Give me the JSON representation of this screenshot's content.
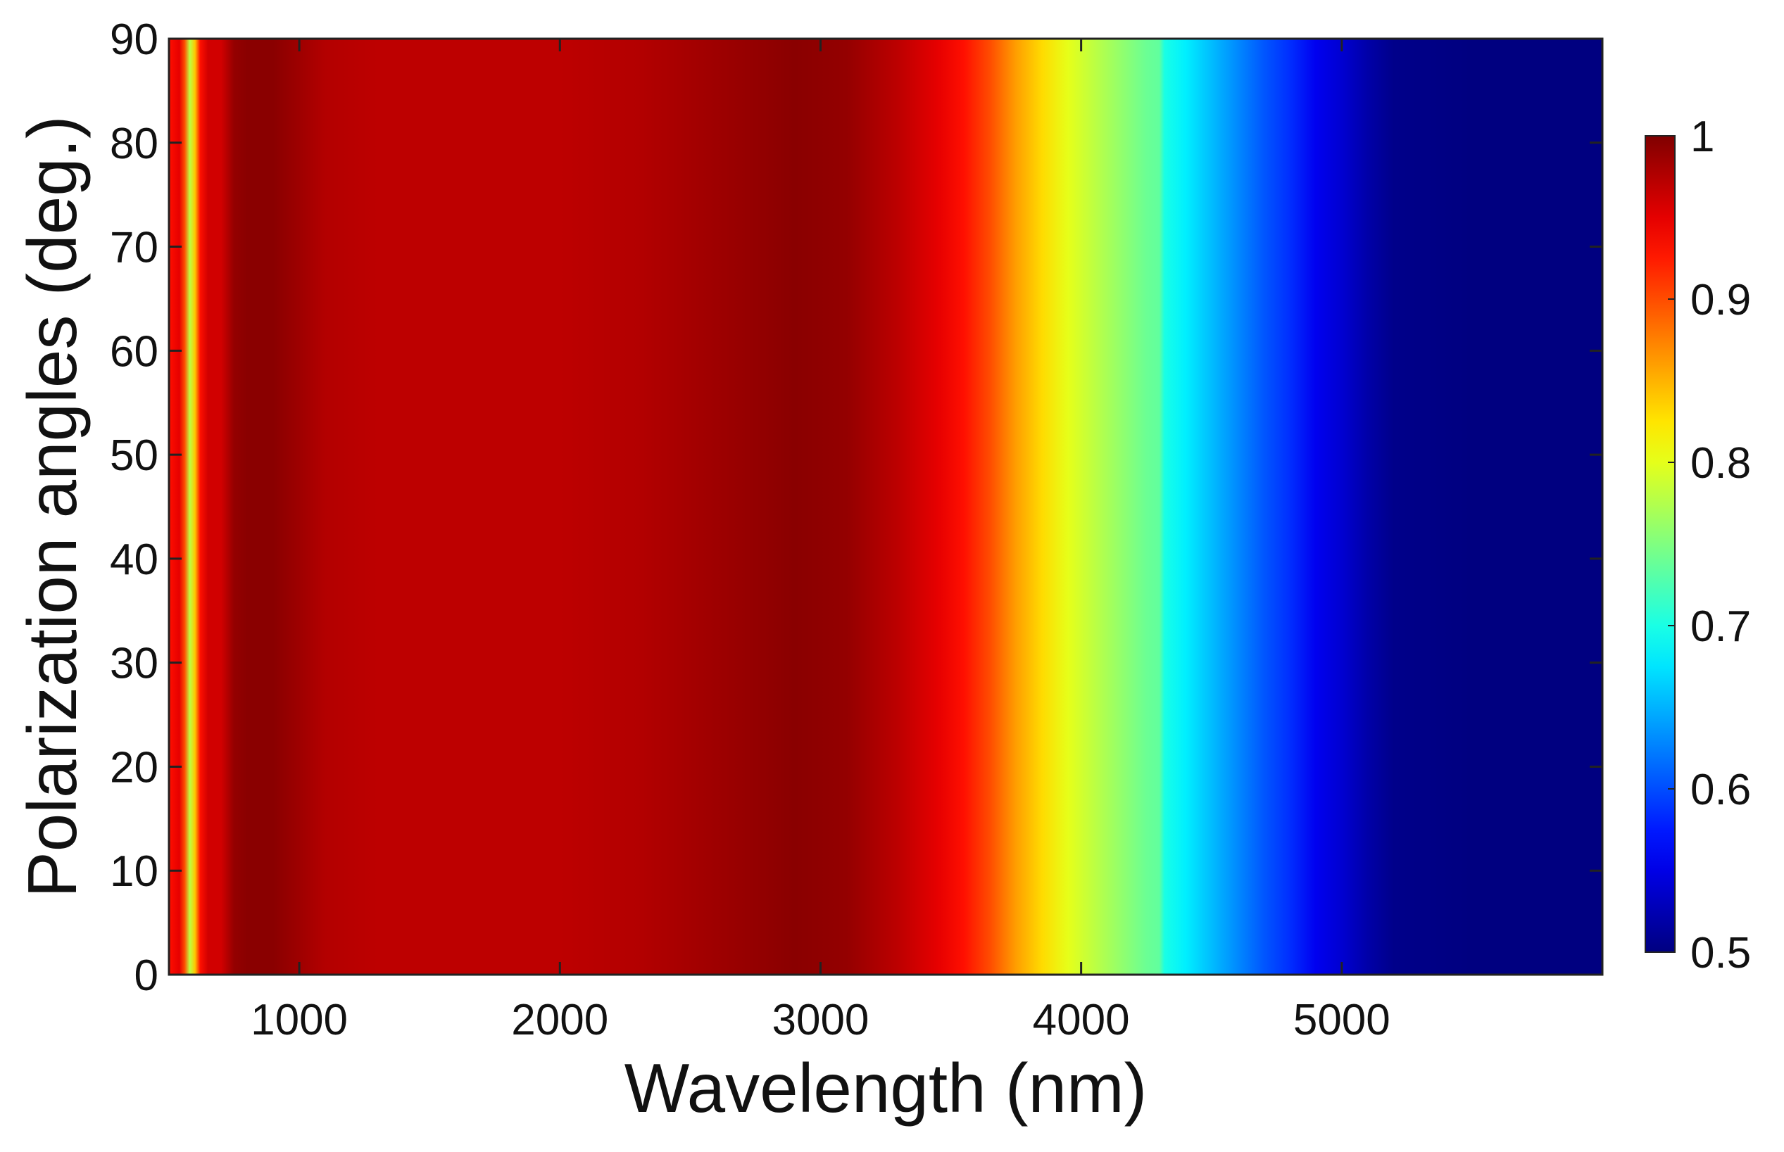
{
  "chart_data": {
    "type": "heatmap",
    "title": "",
    "xlabel": "Wavelength (nm)",
    "ylabel": "Polarization angles (deg.)",
    "xlim": [
      500,
      6000
    ],
    "ylim": [
      0,
      90
    ],
    "x_ticks": [
      1000,
      2000,
      3000,
      4000,
      5000
    ],
    "x_tick_labels": [
      "1000",
      "2000",
      "3000",
      "4000",
      "5000"
    ],
    "y_ticks": [
      0,
      10,
      20,
      30,
      40,
      50,
      60,
      70,
      80,
      90
    ],
    "y_tick_labels": [
      "0",
      "10",
      "20",
      "30",
      "40",
      "50",
      "60",
      "70",
      "80",
      "90"
    ],
    "colorbar": {
      "min": 0.5,
      "max": 1,
      "ticks": [
        0.5,
        0.6,
        0.7,
        0.8,
        0.9,
        1
      ],
      "tick_labels": [
        "0.5",
        "0.6",
        "0.7",
        "0.8",
        "0.9",
        "1"
      ],
      "colormap": "jet"
    },
    "note": "Value is independent of polarization angle; varies only with wavelength.",
    "profile": {
      "wavelength": [
        500,
        540,
        560,
        580,
        600,
        620,
        650,
        700,
        750,
        800,
        900,
        1000,
        1100,
        1300,
        1600,
        2000,
        2300,
        2600,
        2900,
        3100,
        3300,
        3450,
        3550,
        3650,
        3750,
        3850,
        3950,
        4050,
        4150,
        4250,
        4300,
        4320,
        4400,
        4500,
        4600,
        4700,
        4800,
        4900,
        5000,
        5100,
        5200,
        5500,
        6000
      ],
      "value": [
        0.93,
        0.95,
        0.9,
        0.78,
        0.84,
        0.93,
        0.96,
        0.96,
        0.99,
        0.995,
        0.995,
        0.985,
        0.975,
        0.97,
        0.97,
        0.97,
        0.975,
        0.985,
        0.995,
        0.99,
        0.97,
        0.95,
        0.93,
        0.9,
        0.86,
        0.83,
        0.8,
        0.78,
        0.76,
        0.74,
        0.735,
        0.7,
        0.68,
        0.655,
        0.63,
        0.605,
        0.585,
        0.555,
        0.54,
        0.52,
        0.505,
        0.5,
        0.5
      ]
    }
  }
}
